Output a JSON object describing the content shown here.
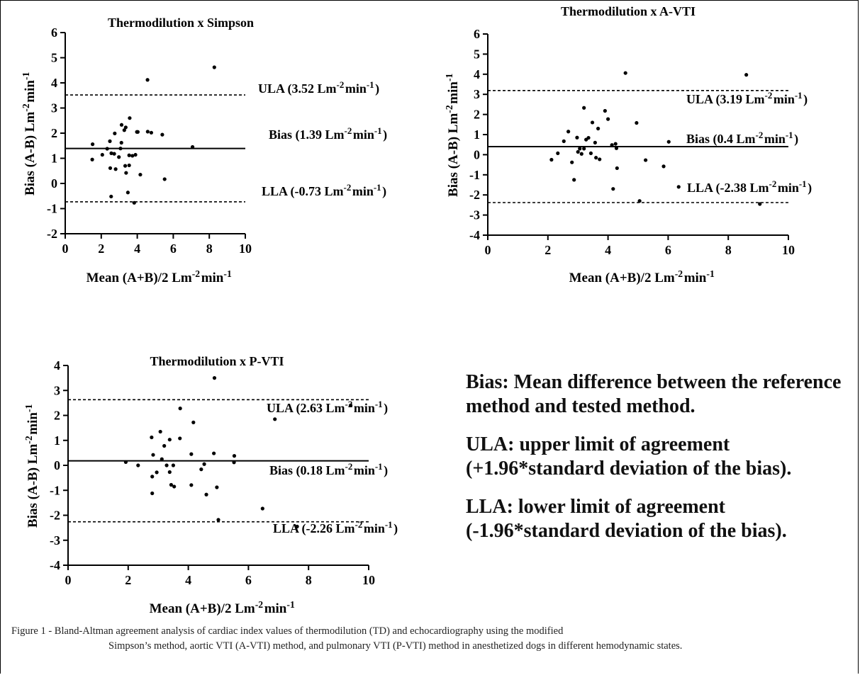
{
  "chart_data": [
    {
      "type": "scatter",
      "title": "Thermodilution x Simpson",
      "xlabel": "Mean (A+B)/2 Lm⁻²min⁻¹",
      "ylabel": "Bias (A-B) Lm⁻²min⁻¹",
      "xlim": [
        0,
        10
      ],
      "ylim": [
        -2,
        6
      ],
      "xticks": [
        "0",
        "2",
        "4",
        "6",
        "8",
        "10"
      ],
      "yticks": [
        "-2",
        "-1",
        "0",
        "1",
        "2",
        "3",
        "4",
        "5",
        "6"
      ],
      "grid": false,
      "lines": [
        {
          "label": "ULA (3.52 Lm⁻²min⁻¹)",
          "value": 3.52,
          "style": "dashed"
        },
        {
          "label": "Bias (1.39 Lm⁻²min⁻¹)",
          "value": 1.39,
          "style": "solid"
        },
        {
          "label": "LLA (-0.73 Lm⁻²min⁻¹)",
          "value": -0.73,
          "style": "dashed"
        }
      ],
      "points": [
        [
          1.52,
          1.56
        ],
        [
          1.5,
          0.95
        ],
        [
          2.06,
          1.14
        ],
        [
          2.33,
          1.38
        ],
        [
          2.48,
          1.68
        ],
        [
          2.56,
          1.2
        ],
        [
          2.5,
          0.61
        ],
        [
          2.72,
          1.18
        ],
        [
          2.75,
          1.99
        ],
        [
          2.8,
          0.57
        ],
        [
          2.98,
          1.05
        ],
        [
          3.07,
          1.39
        ],
        [
          3.12,
          1.62
        ],
        [
          3.13,
          2.33
        ],
        [
          3.28,
          2.12
        ],
        [
          3.36,
          2.23
        ],
        [
          3.33,
          0.7
        ],
        [
          3.38,
          0.42
        ],
        [
          3.55,
          1.12
        ],
        [
          3.58,
          2.6
        ],
        [
          3.55,
          0.72
        ],
        [
          3.73,
          1.1
        ],
        [
          3.9,
          1.14
        ],
        [
          3.98,
          2.05
        ],
        [
          4.03,
          2.05
        ],
        [
          4.17,
          0.35
        ],
        [
          4.58,
          2.06
        ],
        [
          4.78,
          2.02
        ],
        [
          4.57,
          4.12
        ],
        [
          5.39,
          1.94
        ],
        [
          5.52,
          0.17
        ],
        [
          7.07,
          1.45
        ],
        [
          8.28,
          4.62
        ],
        [
          2.55,
          -0.52
        ],
        [
          3.48,
          -0.36
        ],
        [
          3.83,
          -0.77
        ]
      ]
    },
    {
      "type": "scatter",
      "title": "Thermodilution x A-VTI",
      "xlabel": "Mean (A+B)/2 Lm⁻²min⁻¹",
      "ylabel": "Bias (A-B) Lm⁻²min⁻¹",
      "xlim": [
        0,
        10
      ],
      "ylim": [
        -4,
        6
      ],
      "xticks": [
        "0",
        "2",
        "4",
        "6",
        "8",
        "10"
      ],
      "yticks": [
        "-4",
        "-3",
        "-2",
        "-1",
        "0",
        "1",
        "2",
        "3",
        "4",
        "5",
        "6"
      ],
      "grid": false,
      "lines": [
        {
          "label": "ULA (3.19 Lm⁻²min⁻¹)",
          "value": 3.19,
          "style": "dashed"
        },
        {
          "label": "Bias (0.4 Lm⁻²min⁻¹)",
          "value": 0.4,
          "style": "solid"
        },
        {
          "label": "LLA (-2.38 Lm⁻²min⁻¹)",
          "value": -2.38,
          "style": "dashed"
        }
      ],
      "points": [
        [
          2.12,
          -0.25
        ],
        [
          2.33,
          0.07
        ],
        [
          2.53,
          0.67
        ],
        [
          2.68,
          1.15
        ],
        [
          2.8,
          -0.38
        ],
        [
          2.87,
          -1.25
        ],
        [
          2.97,
          0.85
        ],
        [
          3.0,
          0.14
        ],
        [
          3.06,
          0.3
        ],
        [
          3.12,
          0.04
        ],
        [
          3.2,
          2.33
        ],
        [
          3.2,
          0.3
        ],
        [
          3.27,
          0.75
        ],
        [
          3.35,
          0.84
        ],
        [
          3.43,
          0.07
        ],
        [
          3.48,
          1.6
        ],
        [
          3.57,
          0.6
        ],
        [
          3.6,
          -0.15
        ],
        [
          3.67,
          1.3
        ],
        [
          3.72,
          -0.23
        ],
        [
          3.9,
          2.18
        ],
        [
          4.0,
          1.77
        ],
        [
          4.13,
          0.48
        ],
        [
          4.25,
          0.54
        ],
        [
          4.28,
          0.32
        ],
        [
          4.17,
          -1.7
        ],
        [
          4.3,
          -0.67
        ],
        [
          4.58,
          4.06
        ],
        [
          4.95,
          1.58
        ],
        [
          5.05,
          -2.3
        ],
        [
          5.25,
          -0.27
        ],
        [
          5.85,
          -0.58
        ],
        [
          6.02,
          0.64
        ],
        [
          6.35,
          -1.6
        ],
        [
          8.6,
          3.97
        ],
        [
          9.05,
          -2.45
        ]
      ]
    },
    {
      "type": "scatter",
      "title": "Thermodilution x P-VTI",
      "xlabel": "Mean (A+B)/2 Lm⁻²min⁻¹",
      "ylabel": "Bias (A-B) Lm⁻²min⁻¹",
      "xlim": [
        0,
        10
      ],
      "ylim": [
        -4,
        4
      ],
      "xticks": [
        "0",
        "2",
        "4",
        "6",
        "8",
        "10"
      ],
      "yticks": [
        "-4",
        "-3",
        "-2",
        "-1",
        "0",
        "1",
        "2",
        "3",
        "4"
      ],
      "grid": false,
      "lines": [
        {
          "label": "ULA (2.63 Lm⁻²min⁻¹)",
          "value": 2.63,
          "style": "dashed"
        },
        {
          "label": "Bias (0.18 Lm⁻²min⁻¹)",
          "value": 0.18,
          "style": "solid"
        },
        {
          "label": "LLA (-2.26 Lm⁻²min⁻¹)",
          "value": -2.26,
          "style": "dashed"
        }
      ],
      "points": [
        [
          1.92,
          0.13
        ],
        [
          2.33,
          0.0
        ],
        [
          2.78,
          1.12
        ],
        [
          2.83,
          0.42
        ],
        [
          2.8,
          -0.45
        ],
        [
          2.8,
          -1.12
        ],
        [
          2.95,
          -0.28
        ],
        [
          3.07,
          1.35
        ],
        [
          3.12,
          0.25
        ],
        [
          3.2,
          0.78
        ],
        [
          3.28,
          0.0
        ],
        [
          3.38,
          1.03
        ],
        [
          3.38,
          -0.27
        ],
        [
          3.43,
          -0.78
        ],
        [
          3.5,
          0.0
        ],
        [
          3.53,
          -0.85
        ],
        [
          3.73,
          2.28
        ],
        [
          3.72,
          1.08
        ],
        [
          4.1,
          0.45
        ],
        [
          4.17,
          1.72
        ],
        [
          4.1,
          -0.79
        ],
        [
          4.43,
          -0.16
        ],
        [
          4.53,
          0.05
        ],
        [
          4.6,
          -1.17
        ],
        [
          4.85,
          0.48
        ],
        [
          4.87,
          3.5
        ],
        [
          4.95,
          -0.88
        ],
        [
          5.0,
          -2.18
        ],
        [
          5.53,
          0.38
        ],
        [
          5.52,
          0.12
        ],
        [
          6.47,
          -1.73
        ],
        [
          6.88,
          1.85
        ],
        [
          7.62,
          -2.45
        ],
        [
          9.4,
          2.4
        ]
      ]
    }
  ],
  "notes": {
    "bias": "Bias: Mean difference between the reference method and tested method.",
    "ula_1": "ULA: upper limit of agreement",
    "ula_2": "(+1.96*standard deviation of the bias).",
    "lla_1": "LLA: lower limit of agreement",
    "lla_2": "(-1.96*standard deviation of the bias)."
  },
  "caption": {
    "first_line": "Figure 1 - Bland-Altman agreement analysis of cardiac index values of thermodilution (TD) and echocardiography using the modified",
    "rest": "Simpson’s method, aortic VTI (A-VTI) method, and pulmonary VTI (P-VTI) method in anesthetized dogs in different hemodynamic states."
  },
  "colors": {
    "ink": "#000000",
    "text": "#222222"
  }
}
